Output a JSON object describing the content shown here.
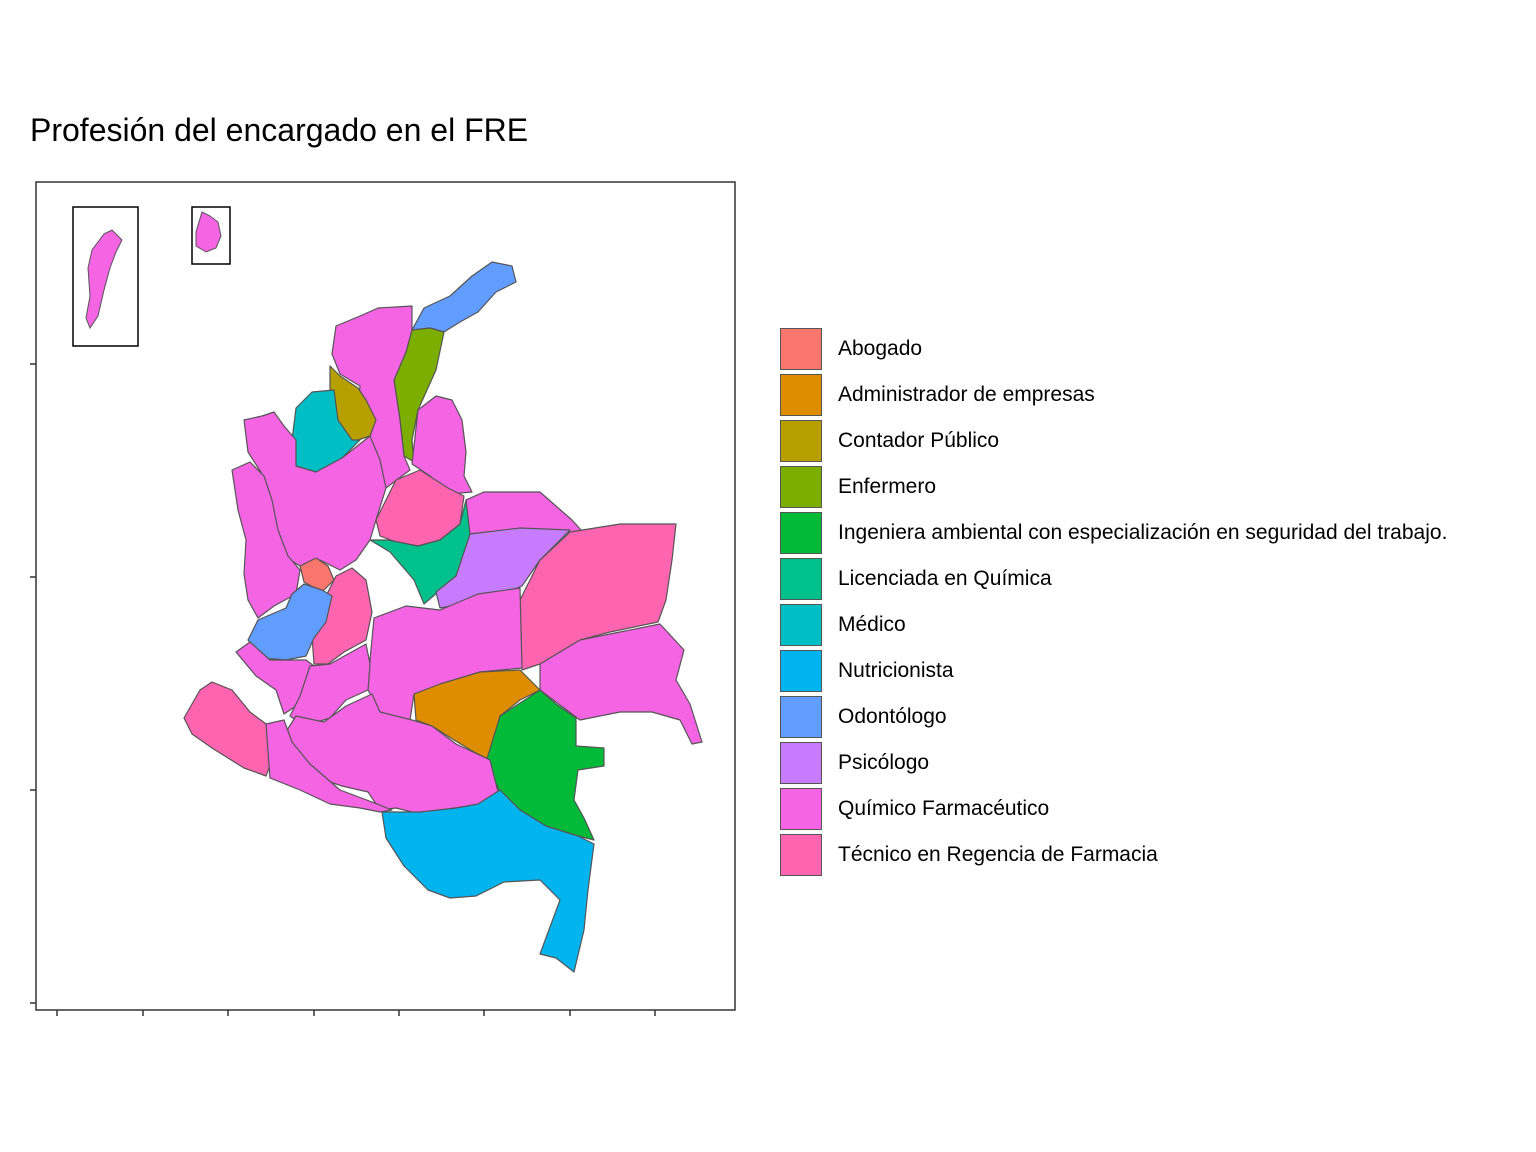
{
  "title": "Profesión del encargado en el FRE",
  "legend": [
    {
      "label": "Abogado",
      "color": "#F8766D"
    },
    {
      "label": "Administrador de empresas",
      "color": "#DE8C00"
    },
    {
      "label": "Contador Público",
      "color": "#B79F00"
    },
    {
      "label": "Enfermero",
      "color": "#7CAE00"
    },
    {
      "label": "Ingeniera ambiental con especialización en seguridad del trabajo.",
      "color": "#00BA38"
    },
    {
      "label": "Licenciada en Química",
      "color": "#00C08B"
    },
    {
      "label": "Médico",
      "color": "#00BFC4"
    },
    {
      "label": "Nutricionista",
      "color": "#00B4F0"
    },
    {
      "label": "Odontólogo",
      "color": "#619CFF"
    },
    {
      "label": "Psicólogo",
      "color": "#C77CFF"
    },
    {
      "label": "Químico Farmacéutico",
      "color": "#F564E3"
    },
    {
      "label": "Técnico en Regencia de Farmacia",
      "color": "#FF64B0"
    }
  ],
  "map": {
    "border_color": "#555555",
    "background_region": "no-data"
  }
}
